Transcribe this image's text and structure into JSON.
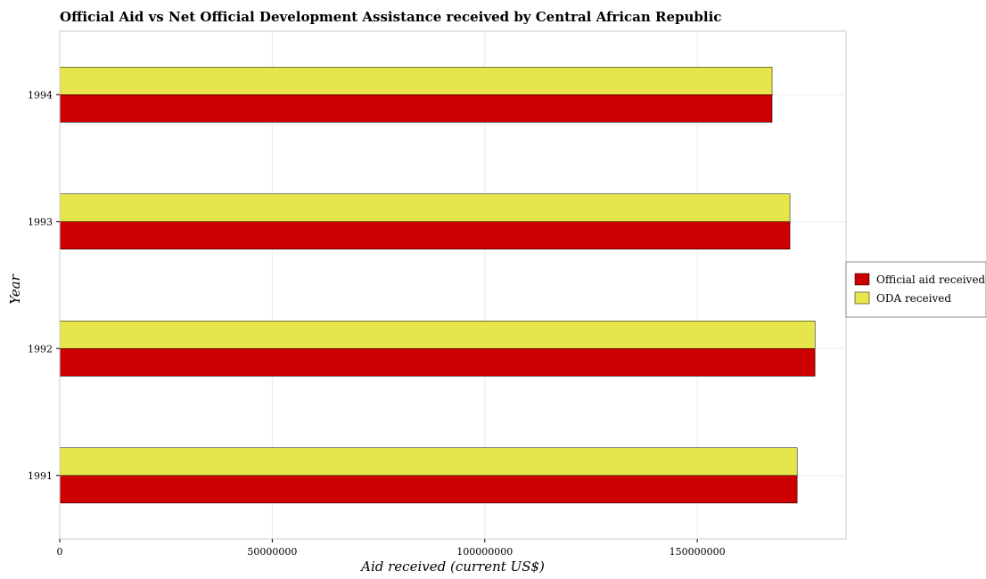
{
  "chart_data": {
    "type": "bar",
    "orientation": "horizontal",
    "title": "Official Aid vs Net Official Development Assistance received by Central African Republic",
    "xlabel": "Aid received (current US$)",
    "ylabel": "Year",
    "categories": [
      "1991",
      "1992",
      "1993",
      "1994"
    ],
    "series": [
      {
        "name": "Official aid received",
        "color": "#cc0000",
        "values": [
          173500000,
          177700000,
          171800000,
          167600000
        ]
      },
      {
        "name": "ODA received",
        "color": "#e6e64c",
        "values": [
          173500000,
          177700000,
          171800000,
          167600000
        ]
      }
    ],
    "xlim": [
      0,
      185000000
    ],
    "xticks": [
      0,
      50000000,
      100000000,
      150000000
    ],
    "xtick_labels": [
      "0",
      "50000000",
      "100000000",
      "150000000"
    ],
    "grid": true,
    "legend_position": "right"
  }
}
